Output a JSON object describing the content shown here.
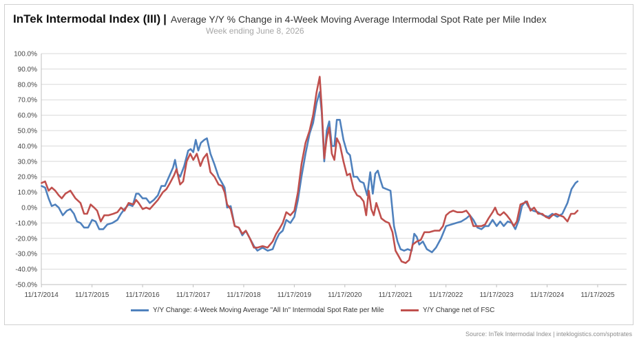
{
  "header": {
    "title": "InTek Intermodal Index (III)",
    "separator": "|",
    "subtitle": "Average Y/Y % Change in 4-Week Moving Average Intermodal Spot Rate per Mile Index",
    "week": "Week ending June 8, 2026"
  },
  "source": "Source: InTek Intermodal Index | inteklogistics.com/spotrates",
  "colors": {
    "series_all_in": "#4f81bd",
    "series_net_fsc": "#c0504d",
    "grid": "#d9d9d9"
  },
  "chart_data": {
    "type": "line",
    "title": "Average Y/Y % Change in 4-Week Moving Average Intermodal Spot Rate per Mile Index",
    "xlabel": "",
    "ylabel": "",
    "xlim": [
      2014.875,
      2026.45
    ],
    "ylim": [
      -50,
      100
    ],
    "y_ticks": [
      "100.0%",
      "90.0%",
      "80.0%",
      "70.0%",
      "60.0%",
      "50.0%",
      "40.0%",
      "30.0%",
      "20.0%",
      "10.0%",
      "0.0%",
      "-10.0%",
      "-20.0%",
      "-30.0%",
      "-40.0%",
      "-50.0%"
    ],
    "x_ticks": [
      "11/17/2014",
      "11/17/2015",
      "11/17/2016",
      "11/17/2017",
      "11/17/2018",
      "11/17/2019",
      "11/17/2020",
      "11/17/2021",
      "11/17/2022",
      "11/17/2023",
      "11/17/2024",
      "11/17/2025"
    ],
    "grid": true,
    "legend_position": "bottom",
    "series": [
      {
        "name": "Y/Y Change: 4-Week Moving Average \"All In\" Intermodal Spot Rate per Mile",
        "color": "#4f81bd",
        "points": [
          [
            2014.88,
            14
          ],
          [
            2014.95,
            13
          ],
          [
            2015.02,
            6
          ],
          [
            2015.08,
            1
          ],
          [
            2015.15,
            2
          ],
          [
            2015.22,
            0
          ],
          [
            2015.3,
            -5
          ],
          [
            2015.38,
            -2
          ],
          [
            2015.45,
            -1
          ],
          [
            2015.52,
            -4
          ],
          [
            2015.58,
            -9
          ],
          [
            2015.65,
            -10
          ],
          [
            2015.72,
            -13
          ],
          [
            2015.8,
            -13
          ],
          [
            2015.88,
            -8
          ],
          [
            2015.95,
            -9
          ],
          [
            2016.02,
            -14
          ],
          [
            2016.1,
            -14
          ],
          [
            2016.18,
            -11
          ],
          [
            2016.28,
            -10
          ],
          [
            2016.38,
            -8
          ],
          [
            2016.45,
            -4
          ],
          [
            2016.52,
            -1
          ],
          [
            2016.6,
            2
          ],
          [
            2016.68,
            1
          ],
          [
            2016.75,
            9
          ],
          [
            2016.8,
            9
          ],
          [
            2016.88,
            6
          ],
          [
            2016.95,
            6
          ],
          [
            2017.02,
            3
          ],
          [
            2017.1,
            5
          ],
          [
            2017.18,
            8
          ],
          [
            2017.25,
            14
          ],
          [
            2017.32,
            14
          ],
          [
            2017.4,
            20
          ],
          [
            2017.48,
            26
          ],
          [
            2017.52,
            31
          ],
          [
            2017.57,
            22
          ],
          [
            2017.62,
            20
          ],
          [
            2017.7,
            27
          ],
          [
            2017.78,
            37
          ],
          [
            2017.83,
            38
          ],
          [
            2017.88,
            36
          ],
          [
            2017.93,
            44
          ],
          [
            2017.98,
            37
          ],
          [
            2018.03,
            42
          ],
          [
            2018.1,
            44
          ],
          [
            2018.15,
            45
          ],
          [
            2018.22,
            35
          ],
          [
            2018.3,
            28
          ],
          [
            2018.38,
            20
          ],
          [
            2018.45,
            16
          ],
          [
            2018.5,
            13
          ],
          [
            2018.55,
            0
          ],
          [
            2018.62,
            1
          ],
          [
            2018.7,
            -12
          ],
          [
            2018.78,
            -13
          ],
          [
            2018.85,
            -18
          ],
          [
            2018.92,
            -15
          ],
          [
            2019.0,
            -20
          ],
          [
            2019.08,
            -25
          ],
          [
            2019.15,
            -28
          ],
          [
            2019.25,
            -26
          ],
          [
            2019.35,
            -28
          ],
          [
            2019.45,
            -27
          ],
          [
            2019.52,
            -21
          ],
          [
            2019.58,
            -17
          ],
          [
            2019.65,
            -15
          ],
          [
            2019.72,
            -8
          ],
          [
            2019.8,
            -10
          ],
          [
            2019.88,
            -6
          ],
          [
            2019.95,
            5
          ],
          [
            2020.02,
            20
          ],
          [
            2020.1,
            35
          ],
          [
            2020.18,
            48
          ],
          [
            2020.25,
            55
          ],
          [
            2020.32,
            68
          ],
          [
            2020.38,
            75
          ],
          [
            2020.42,
            62
          ],
          [
            2020.47,
            30
          ],
          [
            2020.52,
            50
          ],
          [
            2020.57,
            56
          ],
          [
            2020.62,
            40
          ],
          [
            2020.67,
            40
          ],
          [
            2020.72,
            57
          ],
          [
            2020.78,
            57
          ],
          [
            2020.85,
            44
          ],
          [
            2020.92,
            36
          ],
          [
            2020.98,
            34
          ],
          [
            2021.05,
            20
          ],
          [
            2021.12,
            20
          ],
          [
            2021.18,
            17
          ],
          [
            2021.25,
            16
          ],
          [
            2021.32,
            8
          ],
          [
            2021.38,
            23
          ],
          [
            2021.43,
            9
          ],
          [
            2021.48,
            22
          ],
          [
            2021.53,
            24
          ],
          [
            2021.58,
            18
          ],
          [
            2021.63,
            13
          ],
          [
            2021.7,
            12
          ],
          [
            2021.78,
            11
          ],
          [
            2021.85,
            -12
          ],
          [
            2021.92,
            -22
          ],
          [
            2021.98,
            -27
          ],
          [
            2022.05,
            -28
          ],
          [
            2022.12,
            -27
          ],
          [
            2022.2,
            -28
          ],
          [
            2022.25,
            -17
          ],
          [
            2022.3,
            -19
          ],
          [
            2022.35,
            -24
          ],
          [
            2022.42,
            -22
          ],
          [
            2022.5,
            -27
          ],
          [
            2022.6,
            -29
          ],
          [
            2022.68,
            -26
          ],
          [
            2022.78,
            -20
          ],
          [
            2022.88,
            -12
          ],
          [
            2022.98,
            -11
          ],
          [
            2023.08,
            -10
          ],
          [
            2023.18,
            -9
          ],
          [
            2023.28,
            -7
          ],
          [
            2023.35,
            -5
          ],
          [
            2023.42,
            -8
          ],
          [
            2023.5,
            -13
          ],
          [
            2023.58,
            -14
          ],
          [
            2023.65,
            -12
          ],
          [
            2023.72,
            -12
          ],
          [
            2023.8,
            -8
          ],
          [
            2023.88,
            -12
          ],
          [
            2023.95,
            -9
          ],
          [
            2024.02,
            -12
          ],
          [
            2024.1,
            -9
          ],
          [
            2024.18,
            -10
          ],
          [
            2024.25,
            -14
          ],
          [
            2024.32,
            -8
          ],
          [
            2024.38,
            1
          ],
          [
            2024.45,
            4
          ],
          [
            2024.52,
            0
          ],
          [
            2024.6,
            -2
          ],
          [
            2024.7,
            -3
          ],
          [
            2024.8,
            -5
          ],
          [
            2024.9,
            -6
          ],
          [
            2024.98,
            -4
          ],
          [
            2025.08,
            -6
          ],
          [
            2025.18,
            -4
          ],
          [
            2025.28,
            3
          ],
          [
            2025.36,
            12
          ],
          [
            2025.44,
            16
          ],
          [
            2025.48,
            17
          ]
        ]
      },
      {
        "name": "Y/Y Change net of FSC",
        "color": "#c0504d",
        "points": [
          [
            2014.88,
            16
          ],
          [
            2014.95,
            17
          ],
          [
            2015.02,
            11
          ],
          [
            2015.08,
            13
          ],
          [
            2015.15,
            11
          ],
          [
            2015.22,
            8
          ],
          [
            2015.28,
            6
          ],
          [
            2015.35,
            9
          ],
          [
            2015.45,
            11
          ],
          [
            2015.55,
            6
          ],
          [
            2015.65,
            3
          ],
          [
            2015.72,
            -4
          ],
          [
            2015.78,
            -4
          ],
          [
            2015.85,
            2
          ],
          [
            2015.92,
            0
          ],
          [
            2015.98,
            -2
          ],
          [
            2016.05,
            -9
          ],
          [
            2016.12,
            -5
          ],
          [
            2016.2,
            -5
          ],
          [
            2016.3,
            -4
          ],
          [
            2016.38,
            -3
          ],
          [
            2016.45,
            0
          ],
          [
            2016.52,
            -2
          ],
          [
            2016.6,
            3
          ],
          [
            2016.7,
            2
          ],
          [
            2016.75,
            5
          ],
          [
            2016.8,
            3
          ],
          [
            2016.88,
            -1
          ],
          [
            2016.95,
            0
          ],
          [
            2017.02,
            -1
          ],
          [
            2017.1,
            2
          ],
          [
            2017.18,
            5
          ],
          [
            2017.28,
            10
          ],
          [
            2017.35,
            12
          ],
          [
            2017.42,
            16
          ],
          [
            2017.5,
            21
          ],
          [
            2017.55,
            25
          ],
          [
            2017.62,
            15
          ],
          [
            2017.68,
            17
          ],
          [
            2017.75,
            30
          ],
          [
            2017.82,
            35
          ],
          [
            2017.88,
            31
          ],
          [
            2017.95,
            35
          ],
          [
            2018.02,
            27
          ],
          [
            2018.08,
            32
          ],
          [
            2018.15,
            35
          ],
          [
            2018.22,
            23
          ],
          [
            2018.3,
            20
          ],
          [
            2018.38,
            15
          ],
          [
            2018.45,
            14
          ],
          [
            2018.5,
            10
          ],
          [
            2018.55,
            2
          ],
          [
            2018.62,
            -1
          ],
          [
            2018.7,
            -12
          ],
          [
            2018.78,
            -13
          ],
          [
            2018.85,
            -17
          ],
          [
            2018.92,
            -15
          ],
          [
            2019.0,
            -20
          ],
          [
            2019.08,
            -26
          ],
          [
            2019.15,
            -26
          ],
          [
            2019.25,
            -25
          ],
          [
            2019.35,
            -26
          ],
          [
            2019.45,
            -22
          ],
          [
            2019.52,
            -17
          ],
          [
            2019.58,
            -14
          ],
          [
            2019.65,
            -10
          ],
          [
            2019.72,
            -3
          ],
          [
            2019.8,
            -5
          ],
          [
            2019.88,
            -2
          ],
          [
            2019.95,
            10
          ],
          [
            2020.02,
            28
          ],
          [
            2020.1,
            42
          ],
          [
            2020.18,
            50
          ],
          [
            2020.25,
            60
          ],
          [
            2020.32,
            75
          ],
          [
            2020.38,
            85
          ],
          [
            2020.42,
            65
          ],
          [
            2020.47,
            32
          ],
          [
            2020.52,
            45
          ],
          [
            2020.57,
            52
          ],
          [
            2020.62,
            35
          ],
          [
            2020.67,
            31
          ],
          [
            2020.72,
            45
          ],
          [
            2020.78,
            41
          ],
          [
            2020.85,
            30
          ],
          [
            2020.92,
            21
          ],
          [
            2020.98,
            22
          ],
          [
            2021.05,
            12
          ],
          [
            2021.12,
            8
          ],
          [
            2021.18,
            7
          ],
          [
            2021.25,
            4
          ],
          [
            2021.3,
            -5
          ],
          [
            2021.35,
            11
          ],
          [
            2021.4,
            -1
          ],
          [
            2021.45,
            -5
          ],
          [
            2021.5,
            3
          ],
          [
            2021.55,
            -2
          ],
          [
            2021.6,
            -7
          ],
          [
            2021.68,
            -9
          ],
          [
            2021.75,
            -10
          ],
          [
            2021.82,
            -16
          ],
          [
            2021.88,
            -28
          ],
          [
            2021.95,
            -32
          ],
          [
            2022.0,
            -35
          ],
          [
            2022.08,
            -36
          ],
          [
            2022.15,
            -34
          ],
          [
            2022.22,
            -24
          ],
          [
            2022.3,
            -22
          ],
          [
            2022.38,
            -21
          ],
          [
            2022.45,
            -16
          ],
          [
            2022.55,
            -16
          ],
          [
            2022.65,
            -15
          ],
          [
            2022.75,
            -15
          ],
          [
            2022.82,
            -12
          ],
          [
            2022.88,
            -5
          ],
          [
            2022.95,
            -3
          ],
          [
            2023.02,
            -2
          ],
          [
            2023.1,
            -3
          ],
          [
            2023.2,
            -3
          ],
          [
            2023.28,
            -2
          ],
          [
            2023.35,
            -5
          ],
          [
            2023.42,
            -12
          ],
          [
            2023.5,
            -12
          ],
          [
            2023.58,
            -12
          ],
          [
            2023.65,
            -11
          ],
          [
            2023.72,
            -7
          ],
          [
            2023.8,
            -3
          ],
          [
            2023.85,
            0
          ],
          [
            2023.9,
            -4
          ],
          [
            2023.95,
            -5
          ],
          [
            2024.02,
            -3
          ],
          [
            2024.08,
            -5
          ],
          [
            2024.15,
            -8
          ],
          [
            2024.22,
            -12
          ],
          [
            2024.28,
            -9
          ],
          [
            2024.35,
            2
          ],
          [
            2024.42,
            3
          ],
          [
            2024.48,
            4
          ],
          [
            2024.55,
            -2
          ],
          [
            2024.62,
            0
          ],
          [
            2024.7,
            -4
          ],
          [
            2024.78,
            -4
          ],
          [
            2024.85,
            -6
          ],
          [
            2024.92,
            -7
          ],
          [
            2024.98,
            -5
          ],
          [
            2025.05,
            -4
          ],
          [
            2025.12,
            -5
          ],
          [
            2025.2,
            -6
          ],
          [
            2025.28,
            -9
          ],
          [
            2025.35,
            -4
          ],
          [
            2025.42,
            -4
          ],
          [
            2025.48,
            -2
          ]
        ]
      }
    ]
  }
}
